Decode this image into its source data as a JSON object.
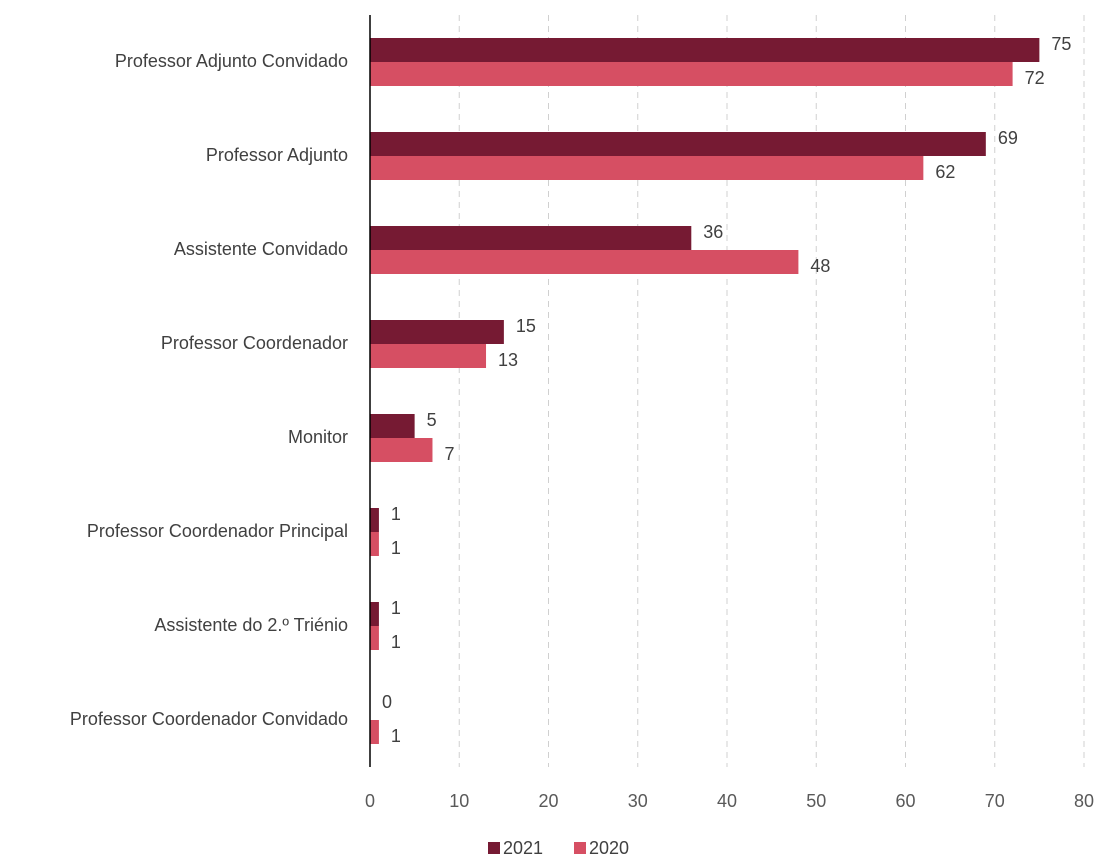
{
  "chart_data": {
    "type": "bar",
    "orientation": "horizontal",
    "categories": [
      "Professor Adjunto Convidado",
      "Professor Adjunto",
      "Assistente Convidado",
      "Professor Coordenador",
      "Monitor",
      "Professor Coordenador Principal",
      "Assistente do 2.º Triénio",
      "Professor Coordenador Convidado"
    ],
    "series": [
      {
        "name": "2021",
        "color": "#761a33",
        "values": [
          75,
          69,
          36,
          15,
          5,
          1,
          1,
          0
        ]
      },
      {
        "name": "2020",
        "color": "#d64f63",
        "values": [
          72,
          62,
          48,
          13,
          7,
          1,
          1,
          1
        ]
      }
    ],
    "xlim": [
      0,
      80
    ],
    "xticks": [
      0,
      10,
      20,
      30,
      40,
      50,
      60,
      70,
      80
    ],
    "grid": true,
    "legend": "bottom"
  }
}
